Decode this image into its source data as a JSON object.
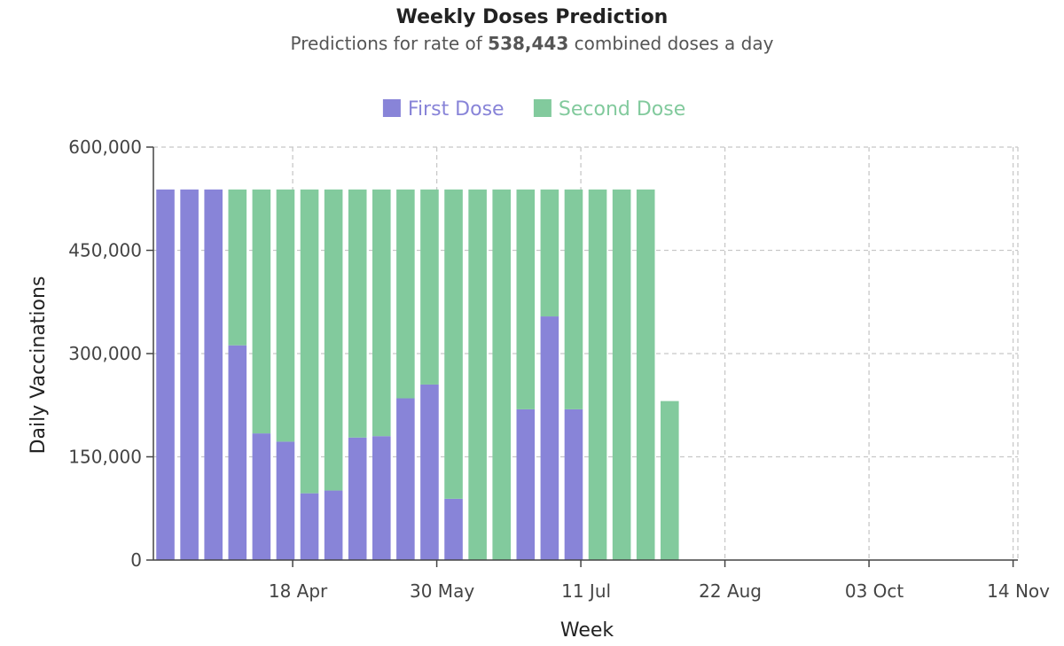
{
  "chart_data": {
    "type": "bar",
    "stacked": true,
    "title": "Weekly Doses Prediction",
    "subtitle": {
      "prefix": "Predictions for rate of ",
      "value": "538,443",
      "suffix": " combined doses a day"
    },
    "xlabel": "Week",
    "ylabel": "Daily Vaccinations",
    "ylim": [
      0,
      600000
    ],
    "y_ticks": [
      0,
      150000,
      300000,
      450000,
      600000
    ],
    "y_tick_labels": [
      "0",
      "150,000",
      "300,000",
      "450,000",
      "600,000"
    ],
    "x_tick_labels": [
      "18 Apr",
      "30 May",
      "11 Jul",
      "22 Aug",
      "03 Oct",
      "14 Nov"
    ],
    "x_tick_week_index": [
      5.3,
      11.3,
      17.3,
      23.3,
      29.3,
      35.3
    ],
    "x_range_weeks": [
      -0.5,
      35.5
    ],
    "grid": true,
    "legend_position": "top-center",
    "series": [
      {
        "name": "First Dose",
        "color": "#8884d8",
        "values": [
          538443,
          538443,
          538443,
          312000,
          184000,
          172000,
          97000,
          101000,
          178000,
          180000,
          235000,
          255000,
          89000,
          0,
          0,
          219000,
          354000,
          219000,
          0,
          0,
          0,
          0
        ]
      },
      {
        "name": "Second Dose",
        "color": "#82ca9d",
        "values": [
          0,
          0,
          0,
          226443,
          354443,
          366443,
          441443,
          437443,
          360443,
          358443,
          303443,
          283443,
          449443,
          538443,
          538443,
          319443,
          184443,
          319443,
          538443,
          538443,
          538443,
          231000
        ]
      }
    ]
  }
}
